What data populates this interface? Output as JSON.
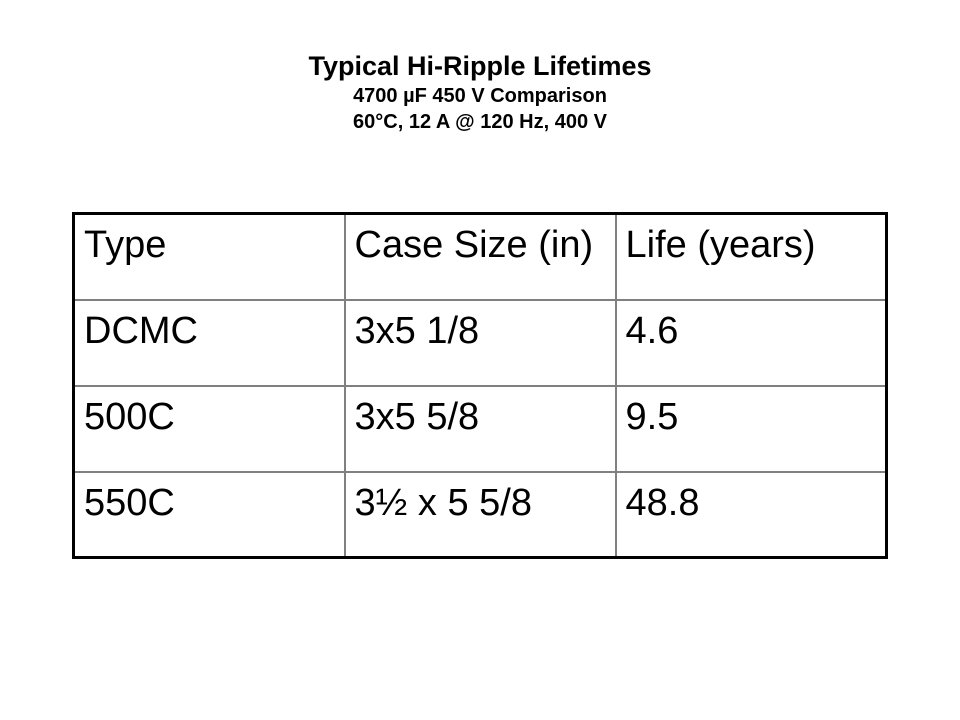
{
  "slide": {
    "title": "Typical Hi-Ripple Lifetimes",
    "subtitle_line1": "4700 µF 450 V Comparison",
    "subtitle_line2": "60°C, 12 A @ 120 Hz, 400 V"
  },
  "table": {
    "headers": [
      "Type",
      "Case Size (in)",
      "Life (years)"
    ],
    "rows": [
      [
        "DCMC",
        "3x5 1/8",
        "4.6"
      ],
      [
        "500C",
        "3x5 5/8",
        "9.5"
      ],
      [
        "550C",
        "3½ x 5 5/8",
        "48.8"
      ]
    ]
  },
  "colors": {
    "background": "#ffffff",
    "text": "#000000",
    "outer_border": "#000000",
    "grid_line": "#808080"
  }
}
